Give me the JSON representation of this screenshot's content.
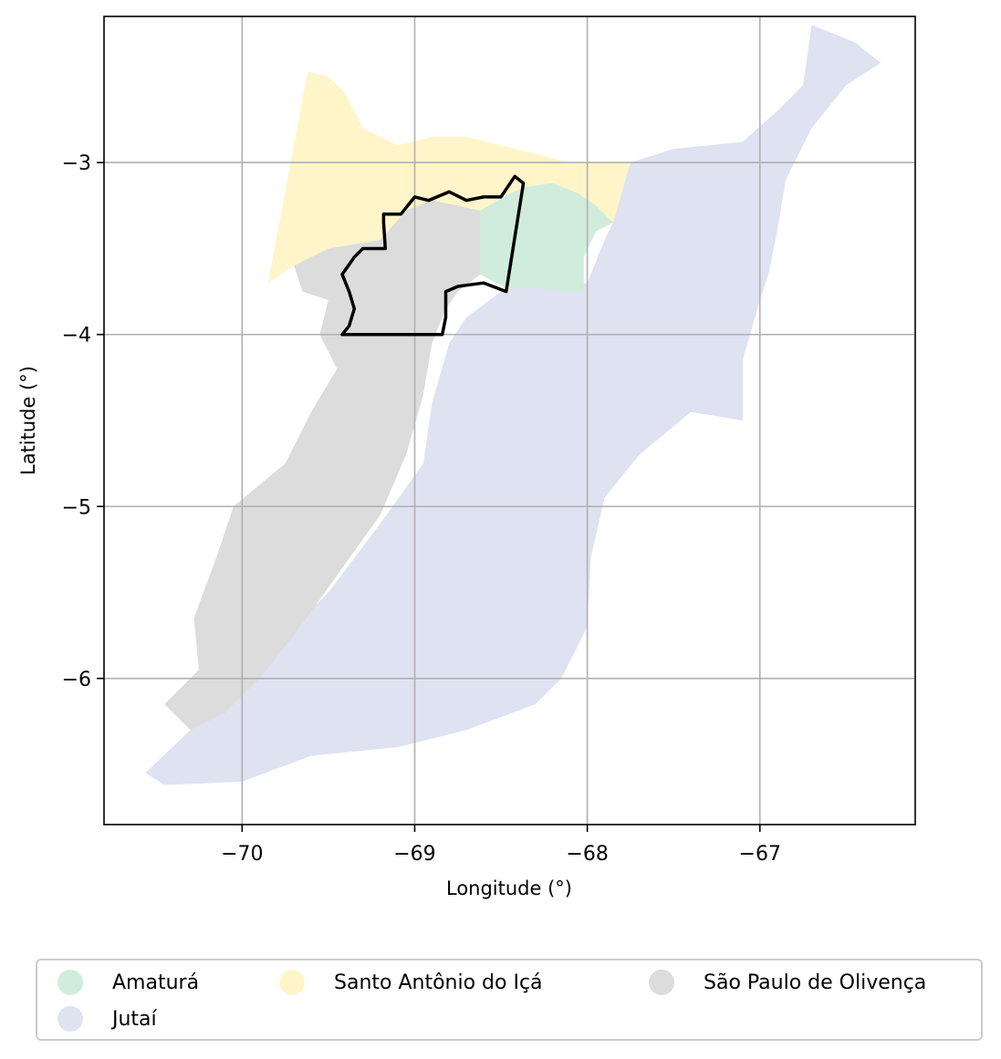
{
  "map": {
    "xlabel": "Longitude (°)",
    "ylabel": "Latitude (°)",
    "xlim": [
      -70.8,
      -66.1
    ],
    "ylim": [
      -6.85,
      -2.15
    ],
    "xticks": [
      {
        "value": -70,
        "label": "−70"
      },
      {
        "value": -69,
        "label": "−69"
      },
      {
        "value": -68,
        "label": "−68"
      },
      {
        "value": -67,
        "label": "−67"
      }
    ],
    "yticks": [
      {
        "value": -3,
        "label": "−3"
      },
      {
        "value": -4,
        "label": "−4"
      },
      {
        "value": -5,
        "label": "−5"
      },
      {
        "value": -6,
        "label": "−6"
      }
    ],
    "grid": true,
    "regions": [
      {
        "name": "Santo Antônio do Içá",
        "color": "#fff5c8",
        "polygon": [
          [
            -69.85,
            -3.7
          ],
          [
            -69.62,
            -2.47
          ],
          [
            -69.5,
            -2.5
          ],
          [
            -69.4,
            -2.6
          ],
          [
            -69.3,
            -2.8
          ],
          [
            -69.1,
            -2.9
          ],
          [
            -68.9,
            -2.85
          ],
          [
            -68.7,
            -2.85
          ],
          [
            -68.5,
            -2.9
          ],
          [
            -68.3,
            -2.95
          ],
          [
            -68.1,
            -3.0
          ],
          [
            -67.75,
            -3.0
          ],
          [
            -67.85,
            -3.35
          ],
          [
            -68.6,
            -3.3
          ],
          [
            -69.0,
            -3.28
          ],
          [
            -69.2,
            -3.45
          ],
          [
            -69.5,
            -3.5
          ],
          [
            -69.7,
            -3.6
          ]
        ]
      },
      {
        "name": "Jutaí",
        "color": "#dee2f1",
        "polygon": [
          [
            -67.75,
            -3.0
          ],
          [
            -67.5,
            -2.92
          ],
          [
            -67.1,
            -2.88
          ],
          [
            -66.9,
            -2.7
          ],
          [
            -66.75,
            -2.55
          ],
          [
            -66.7,
            -2.2
          ],
          [
            -66.45,
            -2.3
          ],
          [
            -66.3,
            -2.42
          ],
          [
            -66.5,
            -2.55
          ],
          [
            -66.7,
            -2.8
          ],
          [
            -66.85,
            -3.1
          ],
          [
            -66.9,
            -3.4
          ],
          [
            -66.95,
            -3.65
          ],
          [
            -67.0,
            -3.8
          ],
          [
            -67.1,
            -4.15
          ],
          [
            -67.1,
            -4.5
          ],
          [
            -67.4,
            -4.45
          ],
          [
            -67.7,
            -4.7
          ],
          [
            -67.9,
            -4.95
          ],
          [
            -67.98,
            -5.3
          ],
          [
            -68.0,
            -5.7
          ],
          [
            -68.15,
            -6.0
          ],
          [
            -68.3,
            -6.15
          ],
          [
            -68.7,
            -6.3
          ],
          [
            -69.1,
            -6.4
          ],
          [
            -69.6,
            -6.45
          ],
          [
            -70.0,
            -6.6
          ],
          [
            -70.45,
            -6.62
          ],
          [
            -70.56,
            -6.55
          ],
          [
            -70.3,
            -6.3
          ],
          [
            -70.0,
            -6.1
          ],
          [
            -69.8,
            -5.8
          ],
          [
            -69.5,
            -5.5
          ],
          [
            -69.2,
            -5.1
          ],
          [
            -68.95,
            -4.75
          ],
          [
            -68.9,
            -4.4
          ],
          [
            -68.8,
            -4.05
          ],
          [
            -68.7,
            -3.9
          ],
          [
            -68.5,
            -3.75
          ],
          [
            -68.35,
            -3.7
          ],
          [
            -68.0,
            -3.7
          ],
          [
            -67.9,
            -3.45
          ],
          [
            -67.85,
            -3.35
          ]
        ]
      },
      {
        "name": "Amaturá",
        "color": "#d0ecdc",
        "polygon": [
          [
            -68.62,
            -3.28
          ],
          [
            -68.45,
            -3.18
          ],
          [
            -68.35,
            -3.14
          ],
          [
            -68.2,
            -3.12
          ],
          [
            -68.05,
            -3.18
          ],
          [
            -67.95,
            -3.25
          ],
          [
            -67.85,
            -3.35
          ],
          [
            -67.95,
            -3.4
          ],
          [
            -68.02,
            -3.55
          ],
          [
            -68.02,
            -3.75
          ],
          [
            -68.15,
            -3.75
          ],
          [
            -68.3,
            -3.72
          ],
          [
            -68.45,
            -3.74
          ],
          [
            -68.62,
            -3.65
          ]
        ]
      },
      {
        "name": "São Paulo de Olivença",
        "color": "#dcdcdc",
        "polygon": [
          [
            -69.05,
            -3.28
          ],
          [
            -68.9,
            -3.22
          ],
          [
            -68.75,
            -3.25
          ],
          [
            -68.62,
            -3.28
          ],
          [
            -68.62,
            -3.65
          ],
          [
            -68.75,
            -3.75
          ],
          [
            -68.82,
            -3.85
          ],
          [
            -68.9,
            -4.05
          ],
          [
            -68.95,
            -4.35
          ],
          [
            -69.05,
            -4.7
          ],
          [
            -69.2,
            -5.05
          ],
          [
            -69.45,
            -5.4
          ],
          [
            -69.7,
            -5.75
          ],
          [
            -69.9,
            -6.0
          ],
          [
            -70.1,
            -6.2
          ],
          [
            -70.3,
            -6.3
          ],
          [
            -70.45,
            -6.15
          ],
          [
            -70.25,
            -5.95
          ],
          [
            -70.28,
            -5.65
          ],
          [
            -70.15,
            -5.3
          ],
          [
            -70.05,
            -5.0
          ],
          [
            -69.75,
            -4.75
          ],
          [
            -69.6,
            -4.45
          ],
          [
            -69.45,
            -4.2
          ],
          [
            -69.55,
            -4.0
          ],
          [
            -69.5,
            -3.8
          ],
          [
            -69.65,
            -3.75
          ],
          [
            -69.7,
            -3.6
          ],
          [
            -69.5,
            -3.5
          ],
          [
            -69.2,
            -3.45
          ]
        ]
      }
    ],
    "outline": [
      [
        -69.42,
        -4.0
      ],
      [
        -69.38,
        -3.95
      ],
      [
        -69.35,
        -3.85
      ],
      [
        -69.38,
        -3.75
      ],
      [
        -69.42,
        -3.65
      ],
      [
        -69.35,
        -3.55
      ],
      [
        -69.3,
        -3.5
      ],
      [
        -69.17,
        -3.5
      ],
      [
        -69.18,
        -3.35
      ],
      [
        -69.18,
        -3.3
      ],
      [
        -69.08,
        -3.3
      ],
      [
        -69.0,
        -3.2
      ],
      [
        -68.92,
        -3.22
      ],
      [
        -68.8,
        -3.17
      ],
      [
        -68.7,
        -3.22
      ],
      [
        -68.6,
        -3.2
      ],
      [
        -68.5,
        -3.2
      ],
      [
        -68.42,
        -3.08
      ],
      [
        -68.37,
        -3.12
      ],
      [
        -68.47,
        -3.75
      ],
      [
        -68.6,
        -3.7
      ],
      [
        -68.75,
        -3.72
      ],
      [
        -68.82,
        -3.75
      ],
      [
        -68.82,
        -3.9
      ],
      [
        -68.84,
        -4.0
      ],
      [
        -69.42,
        -4.0
      ]
    ]
  },
  "legend": {
    "items": [
      {
        "label": "Amaturá",
        "color": "#d0ecdc"
      },
      {
        "label": "Santo Antônio do Içá",
        "color": "#fff5c8"
      },
      {
        "label": "São Paulo de Olivença",
        "color": "#dcdcdc"
      },
      {
        "label": "Jutaí",
        "color": "#dee2f1"
      }
    ]
  }
}
